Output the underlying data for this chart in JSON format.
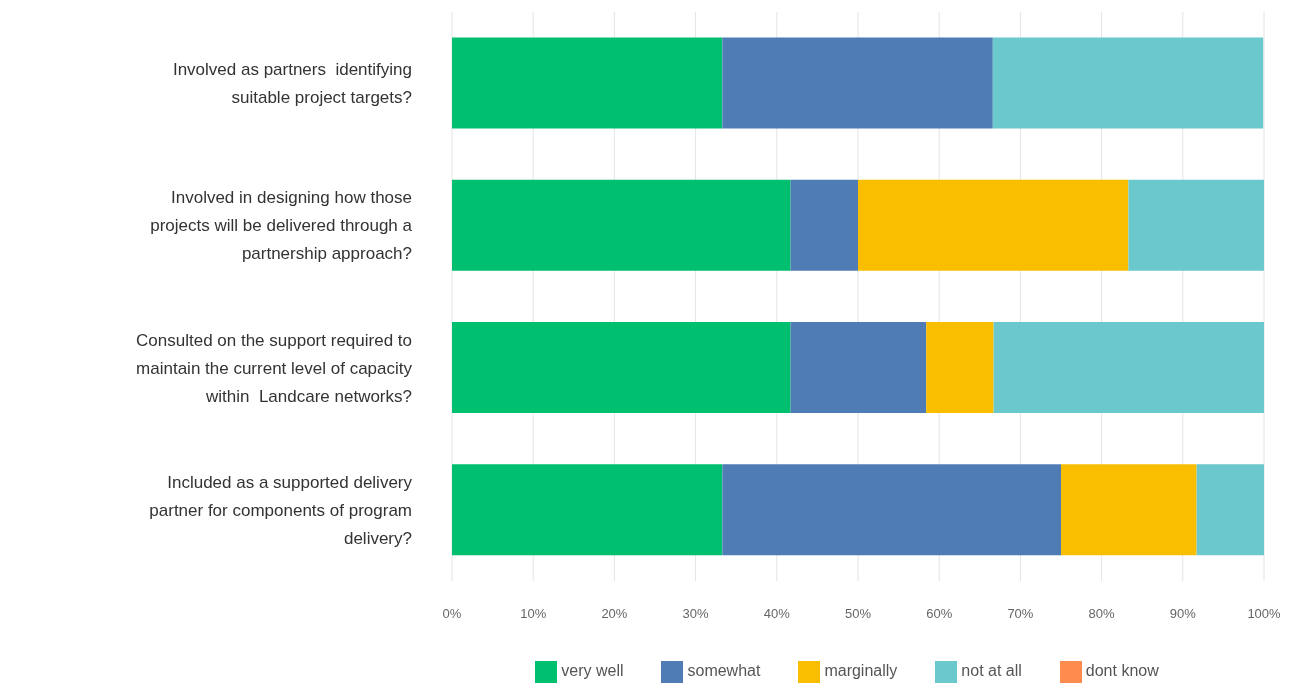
{
  "chart_data": {
    "type": "bar",
    "orientation": "horizontal",
    "stacked": true,
    "categories": [
      "Involved as partners  identifying suitable project targets?",
      "Involved in designing how those projects will be delivered through a partnership approach?",
      "Consulted on the support required to maintain the current level of capacity within  Landcare networks?",
      "Included as a supported delivery partner for components of program delivery?"
    ],
    "series": [
      {
        "name": "very well",
        "color": "#00bf6f",
        "values": [
          33.3,
          41.7,
          41.7,
          33.3
        ]
      },
      {
        "name": "somewhat",
        "color": "#507cb6",
        "values": [
          33.3,
          8.3,
          16.7,
          41.7
        ]
      },
      {
        "name": "marginally",
        "color": "#f9be00",
        "values": [
          0,
          33.3,
          8.3,
          16.7
        ]
      },
      {
        "name": "not at all",
        "color": "#6bc8cd",
        "values": [
          33.3,
          16.7,
          33.3,
          8.3
        ]
      },
      {
        "name": "dont know",
        "color": "#ff8b4f",
        "values": [
          0,
          0,
          0,
          0
        ]
      }
    ],
    "xlim": [
      0,
      100
    ],
    "xticks": [
      {
        "value": 0,
        "label": "0%"
      },
      {
        "value": 10,
        "label": "10%"
      },
      {
        "value": 20,
        "label": "20%"
      },
      {
        "value": 30,
        "label": "30%"
      },
      {
        "value": 40,
        "label": "40%"
      },
      {
        "value": 50,
        "label": "50%"
      },
      {
        "value": 60,
        "label": "60%"
      },
      {
        "value": 70,
        "label": "70%"
      },
      {
        "value": 80,
        "label": "80%"
      },
      {
        "value": 90,
        "label": "90%"
      },
      {
        "value": 100,
        "label": "100%"
      }
    ],
    "grid": "x",
    "legend": "bottom"
  }
}
